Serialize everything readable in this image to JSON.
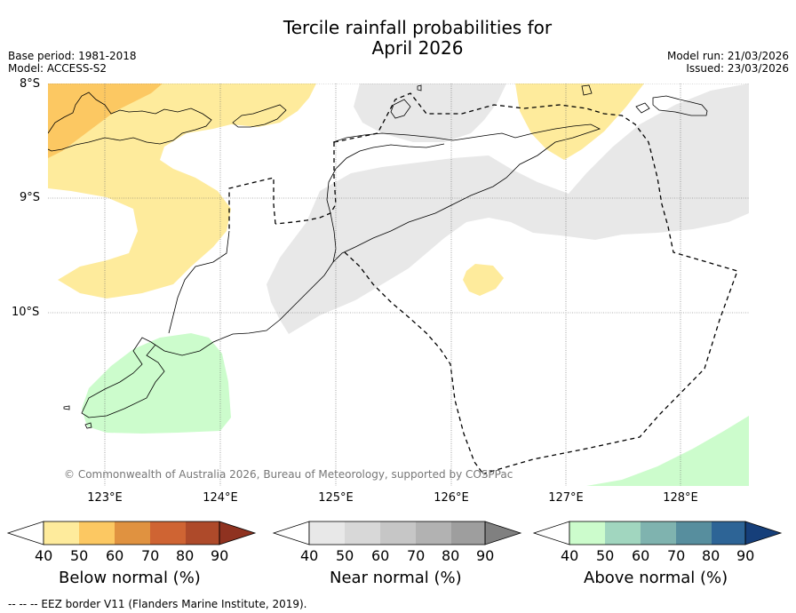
{
  "title_line1": "Tercile rainfall probabilities for",
  "title_line2": "April 2026",
  "base_period": "Base period: 1981-2018",
  "model": "Model: ACCESS-S2",
  "model_run": "Model run: 21/03/2026",
  "issued": "Issued: 23/03/2026",
  "lat_labels": [
    "8°S",
    "9°S",
    "10°S"
  ],
  "lon_labels": [
    "123°E",
    "124°E",
    "125°E",
    "126°E",
    "127°E",
    "128°E"
  ],
  "copyright": "© Commonwealth of Australia 2026, Bureau of Meteorology, supported by COSPPac",
  "colorbars": [
    {
      "title": "Below normal (%)",
      "ticks": [
        "40",
        "50",
        "60",
        "70",
        "80",
        "90"
      ],
      "colors": [
        "#feeb9c",
        "#fcc862",
        "#e09240",
        "#cf6433",
        "#ae4a2a",
        "#8f3220"
      ]
    },
    {
      "title": "Near normal (%)",
      "ticks": [
        "40",
        "50",
        "60",
        "70",
        "80",
        "90"
      ],
      "colors": [
        "#e8e8e8",
        "#d8d8d8",
        "#c6c6c6",
        "#b2b2b2",
        "#9e9e9e",
        "#808080"
      ]
    },
    {
      "title": "Above normal (%)",
      "ticks": [
        "40",
        "50",
        "60",
        "70",
        "80",
        "90"
      ],
      "colors": [
        "#ccfccc",
        "#a1d6bf",
        "#7fb3af",
        "#578e9e",
        "#2d6496",
        "#163f7a"
      ]
    }
  ],
  "footnote": "--  --  -- EEZ border V11 (Flanders Marine Institute, 2019)."
}
